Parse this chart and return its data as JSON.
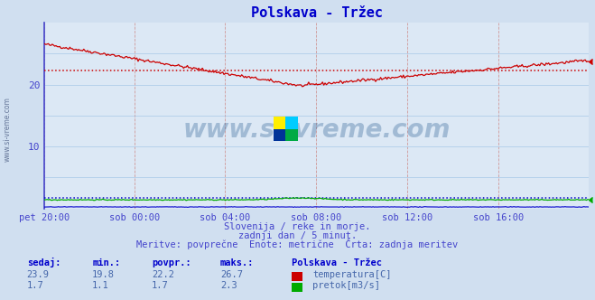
{
  "title": "Polskava - Tržec",
  "bg_color": "#d0dff0",
  "plot_bg_color": "#dce8f5",
  "grid_color_v": "#d09898",
  "grid_color_h": "#a8c8e8",
  "x_labels": [
    "pet 20:00",
    "sob 00:00",
    "sob 04:00",
    "sob 08:00",
    "sob 12:00",
    "sob 16:00"
  ],
  "x_ticks_frac": [
    0.0,
    0.1667,
    0.3333,
    0.5,
    0.6667,
    0.8333
  ],
  "total_points": 432,
  "ylim": [
    0,
    30
  ],
  "yticks": [
    10,
    20
  ],
  "temp_color": "#cc0000",
  "flow_color": "#00aa00",
  "height_color": "#0000cc",
  "avg_temp_color": "#cc0000",
  "avg_flow_color": "#0000cc",
  "temp_avg": 22.2,
  "flow_avg": 1.7,
  "temp_min": 19.8,
  "temp_max": 26.7,
  "temp_current": 23.9,
  "flow_min": 1.1,
  "flow_max": 2.3,
  "flow_current": 1.7,
  "subtitle1": "Slovenija / reke in morje.",
  "subtitle2": "zadnji dan / 5 minut.",
  "subtitle3": "Meritve: povprečne  Enote: metrične  Črta: zadnja meritev",
  "legend_title": "Polskava - Tržec",
  "legend_temp": "temperatura[C]",
  "legend_flow": "pretok[m3/s]",
  "left_label": "www.si-vreme.com",
  "watermark": "www.si-vreme.com",
  "spine_color": "#4444cc",
  "tick_color": "#4444cc",
  "text_color": "#4444cc",
  "stat_color": "#4466aa"
}
